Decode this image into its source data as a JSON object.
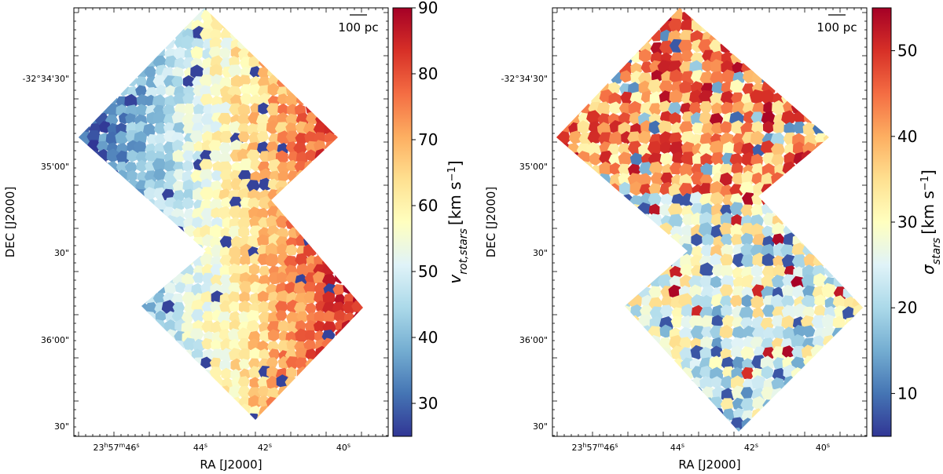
{
  "chart_data": [
    {
      "type": "heatmap",
      "title": "",
      "xlabel": "RA [J2000]",
      "ylabel": "DEC [J2000]",
      "x_ticks": [
        "23h57m46s",
        "44s",
        "42s",
        "40s"
      ],
      "y_ticks": [
        "-32°34'30\"",
        "35'00\"",
        "30\"",
        "36'00\"",
        "30\""
      ],
      "scalebar": "100 pc",
      "colorbar": {
        "label": "v_rot,stars [km s⁻¹]",
        "ticks": [
          30,
          40,
          50,
          60,
          70,
          80,
          90
        ],
        "range": [
          25,
          90
        ],
        "cmap": "RdYlBu_r"
      },
      "trend": "velocity increases from ~30 km/s in the east (left) to ~90 km/s in the west (right)"
    },
    {
      "type": "heatmap",
      "title": "",
      "xlabel": "RA [J2000]",
      "ylabel": "DEC [J2000]",
      "x_ticks": [
        "23h57m46s",
        "44s",
        "42s",
        "40s"
      ],
      "y_ticks": [
        "-32°34'30\"",
        "35'00\"",
        "30\"",
        "36'00\"",
        "30\""
      ],
      "scalebar": "100 pc",
      "colorbar": {
        "label": "σ_stars [km s⁻¹]",
        "ticks": [
          10,
          20,
          30,
          40,
          50
        ],
        "range": [
          5,
          55
        ],
        "cmap": "RdYlBu_r"
      },
      "trend": "dispersion high (~40-55 km/s) in the north field, lower and patchy (~10-30 km/s) in the south field"
    }
  ],
  "text": {
    "left_xlabel": "RA [J2000]",
    "left_ylabel": "DEC [J2000]",
    "right_xlabel": "RA [J2000]",
    "right_ylabel": "DEC [J2000]",
    "x_tick_0_main": "23",
    "x_tick_0_h": "h",
    "x_tick_0_mid": "57",
    "x_tick_0_m": "m",
    "x_tick_0_end": "46",
    "x_tick_0_s": "s",
    "x_tick_1_num": "44",
    "x_tick_2_num": "42",
    "x_tick_3_num": "40",
    "x_tick_sec": "s",
    "y_tick_0": "-32°34'30\"",
    "y_tick_1": "35'00\"",
    "y_tick_2": "30\"",
    "y_tick_3": "36'00\"",
    "y_tick_4": "30\"",
    "scalebar": "100 pc",
    "cb1_label_v": "v",
    "cb1_label_sub": "rot,stars",
    "cb1_label_unit": "[km s",
    "cb1_label_exp": "−1",
    "cb1_label_close": "]",
    "cb2_label_sigma": "σ",
    "cb2_label_sub": "stars",
    "cb2_label_unit": "[km s",
    "cb2_label_exp": "−1",
    "cb2_label_close": "]"
  }
}
